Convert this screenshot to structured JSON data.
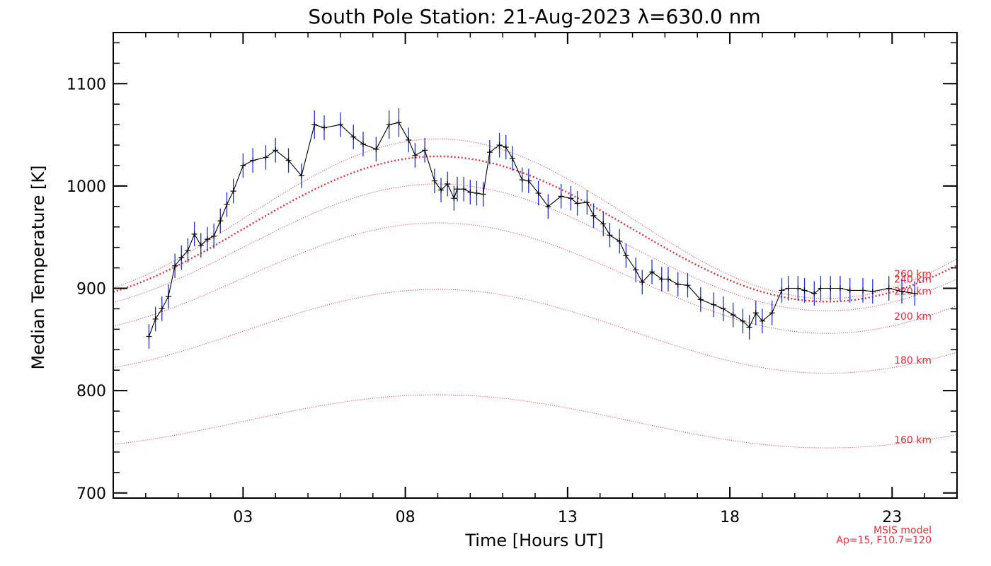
{
  "chart_data": {
    "type": "line",
    "title": "South Pole Station: 21-Aug-2023 λ=630.0 nm",
    "xlabel": "Time [Hours UT]",
    "ylabel": "Median Temperature [K]",
    "xlim": [
      -1,
      25
    ],
    "ylim": [
      695,
      1150
    ],
    "x_ticks": [
      3,
      8,
      13,
      18,
      23
    ],
    "x_tick_labels": [
      "03",
      "08",
      "13",
      "18",
      "23"
    ],
    "y_ticks": [
      700,
      800,
      900,
      1000,
      1100
    ],
    "y_tick_labels": [
      "700",
      "800",
      "900",
      "1000",
      "1100"
    ],
    "grid": false,
    "colors": {
      "data_line": "#000000",
      "error_bars": "#2030d0",
      "model": "#e0303a"
    },
    "series": [
      {
        "name": "Median Temperature",
        "x": [
          0.1,
          0.3,
          0.5,
          0.7,
          0.9,
          1.1,
          1.3,
          1.5,
          1.7,
          1.9,
          2.1,
          2.3,
          2.5,
          2.7,
          3.0,
          3.3,
          3.7,
          4.0,
          4.4,
          4.8,
          5.2,
          5.5,
          6.0,
          6.4,
          6.7,
          7.1,
          7.5,
          7.8,
          8.1,
          8.3,
          8.6,
          8.9,
          9.1,
          9.3,
          9.5,
          9.6,
          9.8,
          10.0,
          10.2,
          10.4,
          10.6,
          10.9,
          11.1,
          11.3,
          11.6,
          11.8,
          12.1,
          12.4,
          12.8,
          13.1,
          13.3,
          13.6,
          13.8,
          14.1,
          14.3,
          14.6,
          14.8,
          15.1,
          15.3,
          15.6,
          15.9,
          16.1,
          16.4,
          16.7,
          17.1,
          17.5,
          17.8,
          18.1,
          18.4,
          18.6,
          18.8,
          19.0,
          19.3,
          19.6,
          19.8,
          20.1,
          20.3,
          20.6,
          20.8,
          21.1,
          21.4,
          21.7,
          22.1,
          22.4,
          22.9,
          23.3,
          23.7
        ],
        "y": [
          853,
          870,
          880,
          892,
          922,
          930,
          937,
          953,
          942,
          948,
          951,
          966,
          982,
          995,
          1020,
          1025,
          1028,
          1035,
          1025,
          1010,
          1060,
          1057,
          1060,
          1048,
          1041,
          1036,
          1060,
          1062,
          1045,
          1030,
          1035,
          1005,
          996,
          1002,
          988,
          997,
          997,
          994,
          993,
          992,
          1033,
          1040,
          1038,
          1027,
          1006,
          1005,
          993,
          980,
          990,
          988,
          983,
          984,
          971,
          963,
          952,
          946,
          932,
          918,
          906,
          916,
          909,
          909,
          904,
          903,
          889,
          884,
          880,
          874,
          868,
          862,
          876,
          868,
          876,
          898,
          900,
          900,
          898,
          895,
          900,
          900,
          900,
          898,
          898,
          897,
          900,
          897,
          895
        ],
        "errors": [
          12,
          12,
          12,
          12,
          12,
          12,
          12,
          12,
          12,
          12,
          12,
          12,
          12,
          12,
          12,
          12,
          12,
          12,
          12,
          12,
          14,
          12,
          12,
          12,
          12,
          12,
          14,
          14,
          12,
          12,
          12,
          12,
          12,
          12,
          12,
          12,
          12,
          12,
          12,
          12,
          12,
          12,
          12,
          12,
          12,
          12,
          12,
          12,
          12,
          12,
          12,
          12,
          12,
          12,
          12,
          12,
          12,
          12,
          12,
          12,
          12,
          12,
          12,
          12,
          12,
          12,
          12,
          12,
          12,
          12,
          12,
          12,
          12,
          12,
          12,
          12,
          12,
          12,
          12,
          12,
          12,
          12,
          12,
          12,
          12,
          12,
          12
        ]
      }
    ],
    "model_curves": [
      {
        "label": "160 km",
        "mean": 770,
        "amp": 26,
        "min_hour": 21,
        "bold": false
      },
      {
        "label": "180 km",
        "mean": 858,
        "amp": 41,
        "min_hour": 21,
        "bold": false
      },
      {
        "label": "200 km",
        "mean": 910,
        "amp": 54,
        "min_hour": 21,
        "bold": false
      },
      {
        "label": "220 km",
        "mean": 940,
        "amp": 62,
        "min_hour": 21,
        "bold": false
      },
      {
        "label": "240 km",
        "mean": 958,
        "amp": 71,
        "min_hour": 21,
        "bold": true
      },
      {
        "label": "260 km",
        "mean": 968,
        "amp": 78,
        "min_hour": 21,
        "bold": false
      }
    ],
    "footnote": {
      "line1": "MSIS model",
      "line2": "Ap=15, F10.7=120"
    }
  }
}
